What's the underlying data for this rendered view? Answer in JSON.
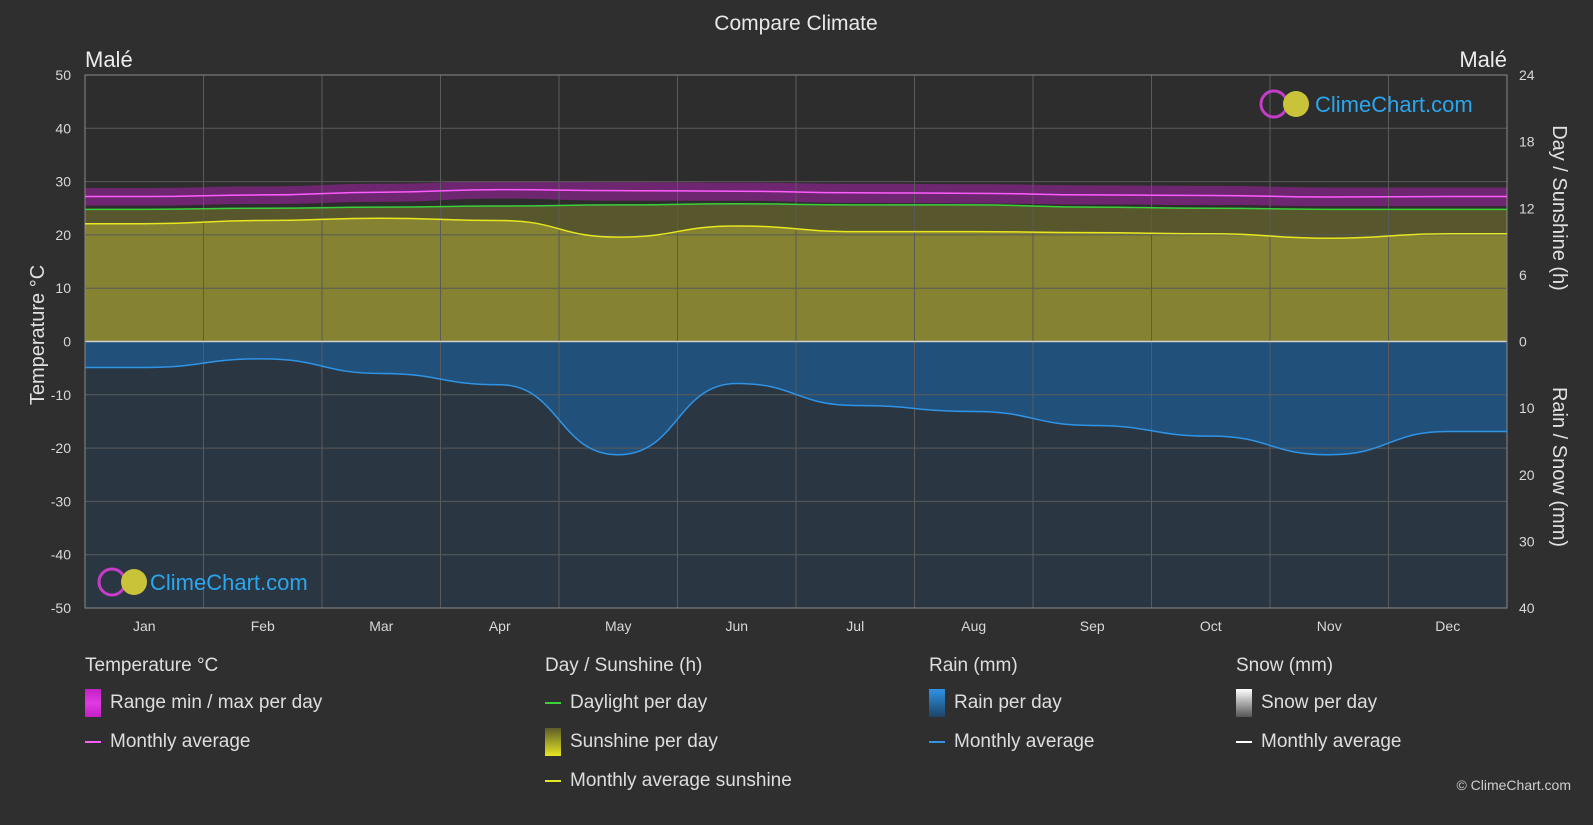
{
  "title": "Compare Climate",
  "location_left": "Malé",
  "location_right": "Malé",
  "logo_text": "ClimeChart.com",
  "copyright": "© ClimeChart.com",
  "colors": {
    "background": "#2f2f2f",
    "temp_range": "#c21fc4",
    "temp_avg": "#ff5cff",
    "daylight": "#3ccf3c",
    "sunshine_fill": "#8d8b32",
    "sunshine_avg": "#e6e621",
    "rain_fill": "#1f5b8e",
    "rain_avg": "#2f93e6",
    "snow": "#ffffff",
    "logo_blue": "#2aa6ef"
  },
  "legend": {
    "temperature": {
      "title": "Temperature °C",
      "range": "Range min / max per day",
      "avg": "Monthly average"
    },
    "sunshine": {
      "title": "Day / Sunshine (h)",
      "daylight": "Daylight per day",
      "sunshine": "Sunshine per day",
      "avg": "Monthly average sunshine"
    },
    "rain": {
      "title": "Rain (mm)",
      "per_day": "Rain per day",
      "avg": "Monthly average"
    },
    "snow": {
      "title": "Snow (mm)",
      "per_day": "Snow per day",
      "avg": "Monthly average"
    }
  },
  "chart_data": {
    "type": "line",
    "categories": [
      "Jan",
      "Feb",
      "Mar",
      "Apr",
      "May",
      "Jun",
      "Jul",
      "Aug",
      "Sep",
      "Oct",
      "Nov",
      "Dec"
    ],
    "ylabel_left": "Temperature °C",
    "ylabel_right_top": "Day / Sunshine (h)",
    "ylabel_right_bottom": "Rain / Snow (mm)",
    "ylim_left": [
      -50,
      50
    ],
    "yticks_left": [
      "50",
      "40",
      "30",
      "20",
      "10",
      "0",
      "-10",
      "-20",
      "-30",
      "-40",
      "-50"
    ],
    "yticks_right_top": [
      "24",
      "18",
      "12",
      "6",
      "0"
    ],
    "yticks_right_bottom": [
      "10",
      "20",
      "30",
      "40"
    ],
    "grid": true,
    "series": [
      {
        "name": "Monthly average",
        "unit": "°C",
        "values": [
          27.2,
          27.5,
          28.0,
          28.5,
          28.3,
          28.2,
          27.9,
          27.8,
          27.5,
          27.4,
          27.1,
          27.2
        ]
      },
      {
        "name": "Daylight per day",
        "unit": "h",
        "values": [
          11.9,
          12.0,
          12.1,
          12.2,
          12.3,
          12.4,
          12.3,
          12.3,
          12.1,
          12.0,
          11.9,
          11.9
        ]
      },
      {
        "name": "Monthly average sunshine",
        "unit": "h",
        "values": [
          10.6,
          10.9,
          11.1,
          10.9,
          9.4,
          10.4,
          9.9,
          9.9,
          9.8,
          9.7,
          9.3,
          9.7
        ]
      },
      {
        "name": "Monthly average",
        "unit": "mm",
        "values": [
          3.9,
          2.6,
          4.8,
          6.5,
          17.0,
          6.3,
          9.6,
          10.5,
          12.6,
          14.2,
          17.0,
          13.5
        ]
      }
    ],
    "temp_range": {
      "min": [
        25.5,
        25.8,
        26.2,
        26.8,
        26.4,
        26.4,
        26.0,
        25.9,
        25.7,
        25.6,
        25.4,
        25.4
      ],
      "max": [
        28.8,
        29.1,
        29.6,
        30.1,
        29.9,
        29.8,
        29.6,
        29.5,
        29.3,
        29.2,
        28.9,
        28.9
      ]
    }
  }
}
